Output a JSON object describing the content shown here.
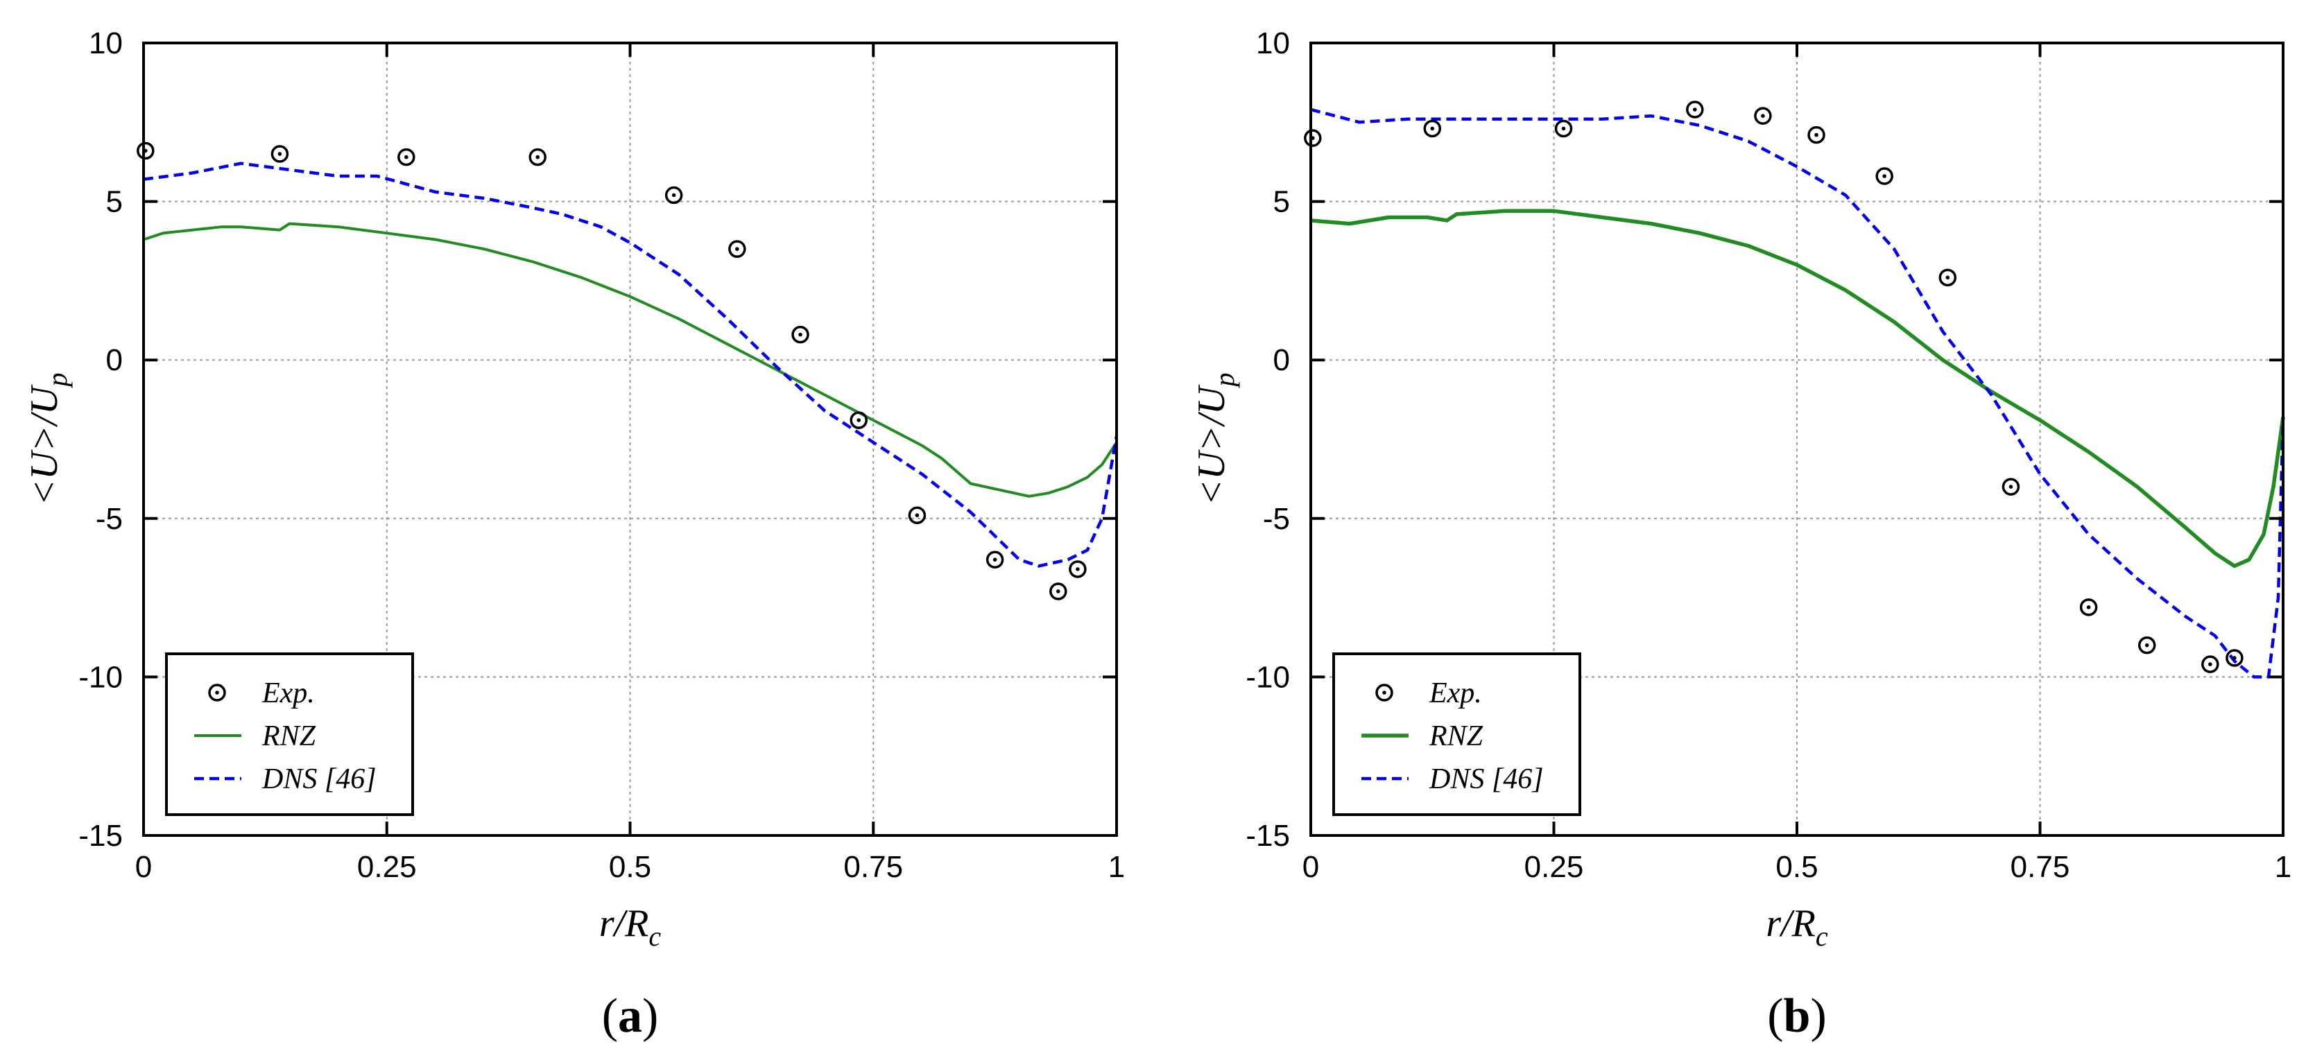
{
  "chart_data": [
    {
      "type": "line",
      "panel_label": "(a)",
      "xlabel": "r/R_c",
      "ylabel": "<U>/U_p",
      "xlim": [
        0,
        1
      ],
      "ylim": [
        -15,
        10
      ],
      "xticks": [
        0,
        0.25,
        0.5,
        0.75,
        1
      ],
      "xtick_labels": [
        "0",
        "0.25",
        "0.5",
        "0.75",
        "1"
      ],
      "yticks": [
        -15,
        -10,
        -5,
        0,
        5,
        10
      ],
      "ytick_labels": [
        "-15",
        "-10",
        "-5",
        "0",
        "5",
        "10"
      ],
      "grid": true,
      "legend_position": "bottom-left",
      "series": [
        {
          "name": "Exp.",
          "style": "scatter",
          "color": "#000000",
          "x": [
            0.002,
            0.14,
            0.27,
            0.405,
            0.545,
            0.61,
            0.675,
            0.735,
            0.795,
            0.875,
            0.94,
            0.96
          ],
          "y": [
            6.6,
            6.5,
            6.4,
            6.4,
            5.2,
            3.5,
            0.8,
            -1.9,
            -4.9,
            -6.3,
            -7.3,
            -6.6
          ]
        },
        {
          "name": "RNZ",
          "style": "solid",
          "color": "#228b22",
          "x": [
            0,
            0.02,
            0.05,
            0.08,
            0.1,
            0.14,
            0.15,
            0.2,
            0.25,
            0.3,
            0.35,
            0.4,
            0.45,
            0.5,
            0.55,
            0.6,
            0.65,
            0.7,
            0.75,
            0.8,
            0.82,
            0.85,
            0.88,
            0.91,
            0.93,
            0.95,
            0.97,
            0.985,
            1.0
          ],
          "y": [
            3.8,
            4.0,
            4.1,
            4.2,
            4.2,
            4.1,
            4.3,
            4.2,
            4.0,
            3.8,
            3.5,
            3.1,
            2.6,
            2.0,
            1.3,
            0.5,
            -0.3,
            -1.1,
            -1.9,
            -2.7,
            -3.1,
            -3.9,
            -4.1,
            -4.3,
            -4.2,
            -4.0,
            -3.7,
            -3.3,
            -2.6
          ]
        },
        {
          "name": "DNS [46]",
          "style": "dashed",
          "color": "#0000ee",
          "x": [
            0,
            0.05,
            0.1,
            0.15,
            0.2,
            0.24,
            0.3,
            0.35,
            0.4,
            0.43,
            0.47,
            0.5,
            0.55,
            0.6,
            0.65,
            0.7,
            0.75,
            0.8,
            0.85,
            0.88,
            0.9,
            0.92,
            0.95,
            0.97,
            0.985,
            1.0
          ],
          "y": [
            5.7,
            5.9,
            6.2,
            6.0,
            5.8,
            5.8,
            5.3,
            5.1,
            4.8,
            4.6,
            4.2,
            3.7,
            2.7,
            1.3,
            -0.2,
            -1.6,
            -2.6,
            -3.6,
            -4.8,
            -5.7,
            -6.3,
            -6.5,
            -6.3,
            -6.0,
            -5.0,
            -2.4
          ]
        }
      ]
    },
    {
      "type": "line",
      "panel_label": "(b)",
      "xlabel": "r/R_c",
      "ylabel": "<U>/U_p",
      "xlim": [
        0,
        1
      ],
      "ylim": [
        -15,
        10
      ],
      "xticks": [
        0,
        0.25,
        0.5,
        0.75,
        1
      ],
      "xtick_labels": [
        "0",
        "0.25",
        "0.5",
        "0.75",
        "1"
      ],
      "yticks": [
        -15,
        -10,
        -5,
        0,
        5,
        10
      ],
      "ytick_labels": [
        "-15",
        "-10",
        "-5",
        "0",
        "5",
        "10"
      ],
      "grid": true,
      "legend_position": "bottom-left",
      "series": [
        {
          "name": "Exp.",
          "style": "scatter",
          "color": "#000000",
          "x": [
            0.002,
            0.125,
            0.26,
            0.395,
            0.465,
            0.52,
            0.59,
            0.655,
            0.72,
            0.8,
            0.86,
            0.925,
            0.95
          ],
          "y": [
            7.0,
            7.3,
            7.3,
            7.9,
            7.7,
            7.1,
            5.8,
            2.6,
            -4.0,
            -7.8,
            -9.0,
            -9.6,
            -9.4
          ]
        },
        {
          "name": "RNZ",
          "style": "solid",
          "color": "#228b22",
          "x": [
            0,
            0.04,
            0.08,
            0.12,
            0.14,
            0.15,
            0.2,
            0.25,
            0.3,
            0.35,
            0.4,
            0.45,
            0.5,
            0.55,
            0.6,
            0.65,
            0.7,
            0.75,
            0.8,
            0.85,
            0.9,
            0.93,
            0.95,
            0.965,
            0.98,
            0.99,
            1.0
          ],
          "y": [
            4.4,
            4.3,
            4.5,
            4.5,
            4.4,
            4.6,
            4.7,
            4.7,
            4.5,
            4.3,
            4.0,
            3.6,
            3.0,
            2.2,
            1.2,
            0.0,
            -1.0,
            -1.9,
            -2.9,
            -4.0,
            -5.3,
            -6.1,
            -6.5,
            -6.3,
            -5.5,
            -4.0,
            -1.8
          ]
        },
        {
          "name": "DNS [46]",
          "style": "dashed",
          "color": "#0000ee",
          "x": [
            0,
            0.05,
            0.1,
            0.15,
            0.2,
            0.25,
            0.3,
            0.35,
            0.4,
            0.45,
            0.5,
            0.55,
            0.6,
            0.65,
            0.7,
            0.75,
            0.8,
            0.85,
            0.9,
            0.93,
            0.95,
            0.97,
            0.985,
            0.995,
            1.0
          ],
          "y": [
            7.9,
            7.5,
            7.6,
            7.6,
            7.6,
            7.6,
            7.6,
            7.7,
            7.4,
            6.9,
            6.1,
            5.2,
            3.5,
            0.9,
            -1.1,
            -3.6,
            -5.5,
            -6.9,
            -8.1,
            -8.7,
            -9.5,
            -10.0,
            -10.0,
            -7.5,
            -1.8
          ]
        }
      ]
    }
  ]
}
